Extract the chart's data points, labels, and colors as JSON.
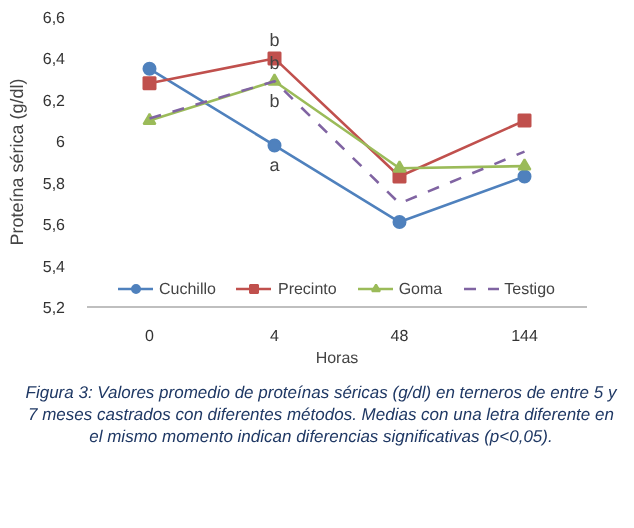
{
  "chart_data": {
    "type": "line",
    "ylabel": "Proteína sérica (g/dl)",
    "xlabel": "Horas",
    "categories": [
      "0",
      "4",
      "48",
      "144"
    ],
    "ylim": [
      5.2,
      6.6
    ],
    "yticks": [
      {
        "value": 5.2,
        "label": "5,2"
      },
      {
        "value": 5.4,
        "label": "5,4"
      },
      {
        "value": 5.6,
        "label": "5,6"
      },
      {
        "value": 5.8,
        "label": "5,8"
      },
      {
        "value": 6,
        "label": "6"
      },
      {
        "value": 6.2,
        "label": "6,2"
      },
      {
        "value": 6.4,
        "label": "6,4"
      },
      {
        "value": 6.6,
        "label": "6,6"
      }
    ],
    "series": [
      {
        "name": "Cuchillo",
        "color": "#4f81bd",
        "marker": "circle",
        "values": [
          6.35,
          5.98,
          5.61,
          5.83
        ]
      },
      {
        "name": "Precinto",
        "color": "#c0504d",
        "marker": "square",
        "values": [
          6.28,
          6.4,
          5.83,
          6.1
        ]
      },
      {
        "name": "Goma",
        "color": "#9bbb59",
        "marker": "triangle",
        "values": [
          6.1,
          6.29,
          5.87,
          5.88
        ]
      },
      {
        "name": "Testigo",
        "color": "#8064a2",
        "marker": "none",
        "line_style": "dashed",
        "values": [
          6.11,
          6.29,
          5.7,
          5.95
        ]
      }
    ],
    "annotations": [
      {
        "text": "b",
        "x": "4",
        "y": 6.4
      },
      {
        "text": "b",
        "x": "4",
        "y": 6.29
      },
      {
        "text": "b",
        "x": "4",
        "y": 6.29
      },
      {
        "text": "a",
        "x": "4",
        "y": 5.98
      },
      "Figura 3: Valores promedio de proteínas séricas (g/dl) en terneros de entre 5 y 7 meses castrados con diferentes métodos. Medias con una letra diferente en el mismo momento indican diferencias significativas (p<0,05)."
    ],
    "grid": false,
    "legend": "bottom"
  }
}
